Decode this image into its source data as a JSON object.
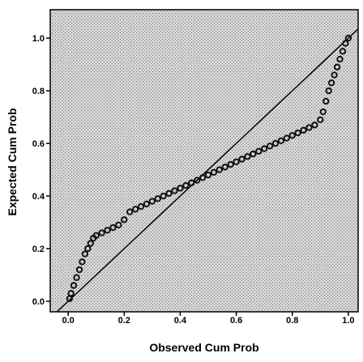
{
  "chart_data": {
    "type": "scatter",
    "x_label": "Observed Cum Prob",
    "y_label": "Expected Cum Prob",
    "color": "#111111",
    "diagonal_line": true,
    "xlim": [
      -0.064,
      1.035
    ],
    "ylim": [
      -0.04,
      1.108
    ],
    "xticks": [
      {
        "value": 0,
        "label": "0.0"
      },
      {
        "value": 0.2,
        "label": "0.2"
      },
      {
        "value": 0.4,
        "label": "0.4"
      },
      {
        "value": 0.6,
        "label": "0.6"
      },
      {
        "value": 0.8,
        "label": "0.8"
      },
      {
        "value": 1,
        "label": "1.0"
      }
    ],
    "yticks": [
      {
        "value": 0,
        "label": "0.0"
      },
      {
        "value": 0.2,
        "label": "0.2"
      },
      {
        "value": 0.4,
        "label": "0.4"
      },
      {
        "value": 0.6,
        "label": "0.6"
      },
      {
        "value": 0.8,
        "label": "0.8"
      },
      {
        "value": 1,
        "label": "1.0"
      }
    ],
    "x": [
      0.005,
      0.01,
      0.02,
      0.03,
      0.04,
      0.05,
      0.06,
      0.07,
      0.08,
      0.09,
      0.1,
      0.12,
      0.14,
      0.16,
      0.18,
      0.2,
      0.22,
      0.24,
      0.26,
      0.28,
      0.3,
      0.32,
      0.34,
      0.36,
      0.38,
      0.4,
      0.42,
      0.44,
      0.46,
      0.48,
      0.5,
      0.52,
      0.54,
      0.56,
      0.58,
      0.6,
      0.62,
      0.64,
      0.66,
      0.68,
      0.7,
      0.72,
      0.74,
      0.76,
      0.78,
      0.8,
      0.82,
      0.84,
      0.86,
      0.88,
      0.9,
      0.91,
      0.92,
      0.93,
      0.94,
      0.95,
      0.96,
      0.97,
      0.98,
      0.99,
      1.0
    ],
    "values": [
      0.01,
      0.03,
      0.06,
      0.09,
      0.12,
      0.15,
      0.18,
      0.2,
      0.22,
      0.24,
      0.25,
      0.26,
      0.27,
      0.28,
      0.29,
      0.31,
      0.34,
      0.35,
      0.36,
      0.37,
      0.38,
      0.39,
      0.4,
      0.41,
      0.42,
      0.43,
      0.44,
      0.45,
      0.46,
      0.47,
      0.48,
      0.49,
      0.5,
      0.51,
      0.52,
      0.53,
      0.54,
      0.55,
      0.56,
      0.57,
      0.58,
      0.59,
      0.6,
      0.61,
      0.62,
      0.63,
      0.64,
      0.65,
      0.66,
      0.67,
      0.69,
      0.72,
      0.76,
      0.8,
      0.83,
      0.86,
      0.89,
      0.92,
      0.95,
      0.98,
      1.0
    ]
  }
}
